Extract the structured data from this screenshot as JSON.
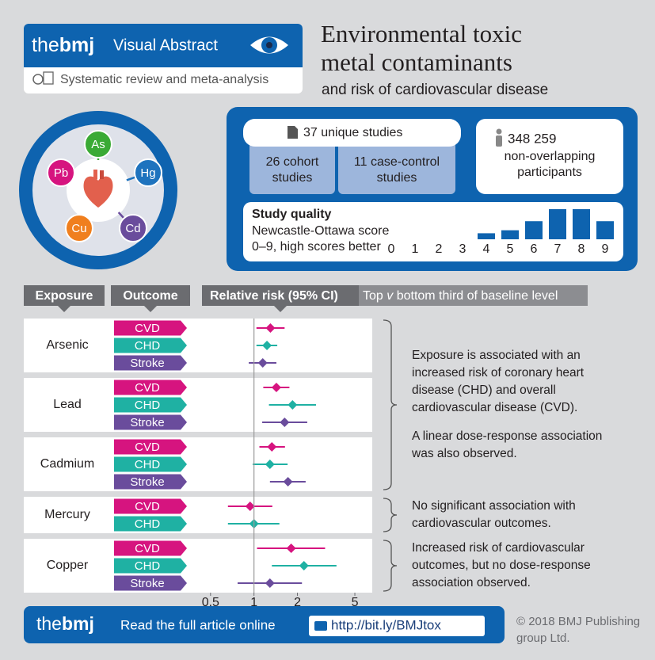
{
  "header": {
    "brand_the": "the",
    "brand_bmj": "bmj",
    "label": "Visual Abstract",
    "subtitle": "Systematic review and meta-analysis",
    "title_lines": [
      "Environmental toxic",
      "metal contaminants"
    ],
    "title_sub": "and risk of cardiovascular disease"
  },
  "metals": [
    {
      "symbol": "As",
      "color": "#3aaa35"
    },
    {
      "symbol": "Hg",
      "color": "#1e73be"
    },
    {
      "symbol": "Cd",
      "color": "#6a4c9c"
    },
    {
      "symbol": "Cu",
      "color": "#f07f1e"
    },
    {
      "symbol": "Pb",
      "color": "#d6147f"
    }
  ],
  "studies": {
    "total": "37 unique studies",
    "cohort": [
      "26 cohort",
      "studies"
    ],
    "case_control": [
      "11 case-control",
      "studies"
    ],
    "participants_number": "348 259",
    "participants_label": [
      "non-overlapping",
      "participants"
    ]
  },
  "chart_data": [
    {
      "type": "bar",
      "title": "Study quality",
      "subtitle_lines": [
        "Newcastle-Ottawa score",
        "0–9, high scores better"
      ],
      "categories": [
        "0",
        "1",
        "2",
        "3",
        "4",
        "5",
        "6",
        "7",
        "8",
        "9"
      ],
      "values": [
        0,
        0,
        0,
        0,
        2,
        3,
        6,
        10,
        10,
        6
      ],
      "color": "#0e63af"
    },
    {
      "type": "forest",
      "headers": [
        "Exposure",
        "Outcome"
      ],
      "x_label": "Relative risk (95% CI)",
      "x_note": [
        "Top ",
        "v",
        " bottom third of baseline level"
      ],
      "xscale": "log",
      "xlim": [
        0.37,
        6.6
      ],
      "xticks": [
        0.5,
        1,
        2,
        5
      ],
      "reference": 1,
      "groups": [
        {
          "name": "Arsenic",
          "outcomes": [
            {
              "name": "CVD",
              "color": "#d6147f",
              "value": 1.3,
              "ci": [
                1.04,
                1.63
              ]
            },
            {
              "name": "CHD",
              "color": "#1fb1a3",
              "value": 1.23,
              "ci": [
                1.04,
                1.45
              ]
            },
            {
              "name": "Stroke",
              "color": "#6a4c9c",
              "value": 1.15,
              "ci": [
                0.92,
                1.43
              ]
            }
          ]
        },
        {
          "name": "Lead",
          "outcomes": [
            {
              "name": "CVD",
              "color": "#d6147f",
              "value": 1.43,
              "ci": [
                1.16,
                1.76
              ]
            },
            {
              "name": "CHD",
              "color": "#1fb1a3",
              "value": 1.85,
              "ci": [
                1.27,
                2.69
              ]
            },
            {
              "name": "Stroke",
              "color": "#6a4c9c",
              "value": 1.63,
              "ci": [
                1.14,
                2.34
              ]
            }
          ]
        },
        {
          "name": "Cadmium",
          "outcomes": [
            {
              "name": "CVD",
              "color": "#d6147f",
              "value": 1.33,
              "ci": [
                1.09,
                1.64
              ]
            },
            {
              "name": "CHD",
              "color": "#1fb1a3",
              "value": 1.29,
              "ci": [
                0.98,
                1.71
              ]
            },
            {
              "name": "Stroke",
              "color": "#6a4c9c",
              "value": 1.72,
              "ci": [
                1.29,
                2.28
              ]
            }
          ]
        },
        {
          "name": "Mercury",
          "outcomes": [
            {
              "name": "CVD",
              "color": "#d6147f",
              "value": 0.94,
              "ci": [
                0.66,
                1.34
              ]
            },
            {
              "name": "CHD",
              "color": "#1fb1a3",
              "value": 1.0,
              "ci": [
                0.66,
                1.5
              ]
            }
          ]
        },
        {
          "name": "Copper",
          "outcomes": [
            {
              "name": "CVD",
              "color": "#d6147f",
              "value": 1.81,
              "ci": [
                1.05,
                3.11
              ]
            },
            {
              "name": "CHD",
              "color": "#1fb1a3",
              "value": 2.22,
              "ci": [
                1.33,
                3.73
              ]
            },
            {
              "name": "Stroke",
              "color": "#6a4c9c",
              "value": 1.29,
              "ci": [
                0.77,
                2.15
              ]
            }
          ]
        }
      ]
    }
  ],
  "notes": [
    {
      "paragraphs": [
        [
          "Exposure is associated with an",
          "increased risk of coronary heart",
          "disease (CHD) and overall",
          "cardiovascular disease (CVD)."
        ],
        [
          "A linear dose-response association",
          "was also observed."
        ]
      ]
    },
    {
      "paragraphs": [
        [
          "No significant association with",
          "cardiovascular outcomes."
        ]
      ]
    },
    {
      "paragraphs": [
        [
          "Increased risk of cardiovascular",
          "outcomes, but no dose-response",
          "association observed."
        ]
      ]
    }
  ],
  "footer": {
    "brand_the": "the",
    "brand_bmj": "bmj",
    "read": "Read the full article online",
    "link": "http://bit.ly/BMJtox",
    "copyright": [
      "© 2018 BMJ Publishing",
      "group Ltd."
    ]
  }
}
